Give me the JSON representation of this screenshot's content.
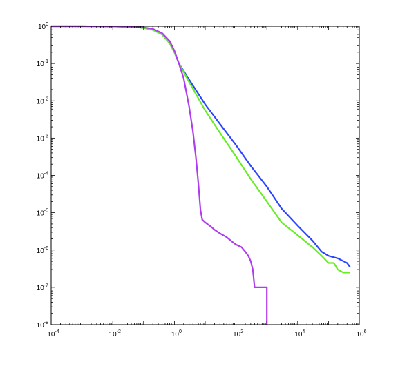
{
  "chart_data": {
    "type": "line",
    "title": "",
    "xlabel": "",
    "ylabel": "",
    "xscale": "log",
    "yscale": "log",
    "xlim": [
      0.0001,
      1000000
    ],
    "ylim": [
      1e-08,
      1
    ],
    "grid": false,
    "legend": "none",
    "x_ticks": [
      {
        "value": 0.0001,
        "base": "10",
        "exp": "-4"
      },
      {
        "value": 0.01,
        "base": "10",
        "exp": "-2"
      },
      {
        "value": 1,
        "base": "10",
        "exp": "0"
      },
      {
        "value": 100,
        "base": "10",
        "exp": "2"
      },
      {
        "value": 10000,
        "base": "10",
        "exp": "4"
      },
      {
        "value": 1000000,
        "base": "10",
        "exp": "6"
      }
    ],
    "y_ticks": [
      {
        "value": 1,
        "base": "10",
        "exp": "0"
      },
      {
        "value": 0.1,
        "base": "10",
        "exp": "-1"
      },
      {
        "value": 0.01,
        "base": "10",
        "exp": "-2"
      },
      {
        "value": 0.001,
        "base": "10",
        "exp": "-3"
      },
      {
        "value": 0.0001,
        "base": "10",
        "exp": "-4"
      },
      {
        "value": 1e-05,
        "base": "10",
        "exp": "-5"
      },
      {
        "value": 1e-06,
        "base": "10",
        "exp": "-6"
      },
      {
        "value": 1e-07,
        "base": "10",
        "exp": "-7"
      },
      {
        "value": 1e-08,
        "base": "10",
        "exp": "-8"
      }
    ],
    "series": [
      {
        "color": "#2b45ff",
        "points": [
          [
            0.0001,
            1
          ],
          [
            0.001,
            1
          ],
          [
            0.01,
            0.99
          ],
          [
            0.05,
            0.95
          ],
          [
            0.1,
            0.9
          ],
          [
            0.2,
            0.8
          ],
          [
            0.4,
            0.6
          ],
          [
            0.7,
            0.35
          ],
          [
            1.0,
            0.2
          ],
          [
            1.4,
            0.1
          ],
          [
            3,
            0.037
          ],
          [
            10,
            0.008
          ],
          [
            30,
            0.0024
          ],
          [
            100,
            0.00065
          ],
          [
            300,
            0.00018
          ],
          [
            1000,
            5e-05
          ],
          [
            3000,
            1.3e-05
          ],
          [
            10000,
            4.5e-06
          ],
          [
            15000,
            3.2e-06
          ],
          [
            30000,
            1.8e-06
          ],
          [
            60000,
            9e-07
          ],
          [
            100000,
            7e-07
          ],
          [
            200000,
            6e-07
          ],
          [
            400000,
            4.5e-07
          ],
          [
            500000,
            3.5e-07
          ]
        ]
      },
      {
        "color": "#66ee22",
        "points": [
          [
            0.0001,
            1
          ],
          [
            0.001,
            1
          ],
          [
            0.01,
            0.99
          ],
          [
            0.05,
            0.95
          ],
          [
            0.1,
            0.9
          ],
          [
            0.2,
            0.8
          ],
          [
            0.4,
            0.6
          ],
          [
            0.7,
            0.35
          ],
          [
            1.0,
            0.2
          ],
          [
            1.4,
            0.1
          ],
          [
            3,
            0.032
          ],
          [
            10,
            0.0055
          ],
          [
            30,
            0.0014
          ],
          [
            100,
            0.00032
          ],
          [
            300,
            8e-05
          ],
          [
            1000,
            2e-05
          ],
          [
            3000,
            5.5e-06
          ],
          [
            10000,
            2.5e-06
          ],
          [
            30000,
            1.2e-06
          ],
          [
            60000,
            7e-07
          ],
          [
            100000,
            4.5e-07
          ],
          [
            150000,
            4.5e-07
          ],
          [
            200000,
            3e-07
          ],
          [
            300000,
            2.5e-07
          ],
          [
            500000,
            2.5e-07
          ]
        ]
      },
      {
        "color": "#b03cf0",
        "points": [
          [
            0.0001,
            1
          ],
          [
            0.001,
            1
          ],
          [
            0.01,
            0.99
          ],
          [
            0.05,
            0.96
          ],
          [
            0.1,
            0.93
          ],
          [
            0.2,
            0.85
          ],
          [
            0.4,
            0.65
          ],
          [
            0.7,
            0.4
          ],
          [
            1.0,
            0.22
          ],
          [
            1.4,
            0.1
          ],
          [
            2,
            0.04
          ],
          [
            3,
            0.007
          ],
          [
            4,
            0.0015
          ],
          [
            5,
            0.0003
          ],
          [
            6,
            6e-05
          ],
          [
            7,
            1.2e-05
          ],
          [
            8,
            6.5e-06
          ],
          [
            10,
            5.5e-06
          ],
          [
            15,
            4.3e-06
          ],
          [
            20,
            3.5e-06
          ],
          [
            30,
            2.8e-06
          ],
          [
            50,
            2.2e-06
          ],
          [
            80,
            1.6e-06
          ],
          [
            100,
            1.4e-06
          ],
          [
            150,
            1.2e-06
          ],
          [
            200,
            9e-07
          ],
          [
            250,
            7e-07
          ],
          [
            300,
            5e-07
          ],
          [
            350,
            3e-07
          ],
          [
            400,
            1e-07
          ],
          [
            600,
            1e-07
          ],
          [
            1000,
            1e-07
          ],
          [
            1000,
            1e-08
          ]
        ]
      }
    ]
  }
}
